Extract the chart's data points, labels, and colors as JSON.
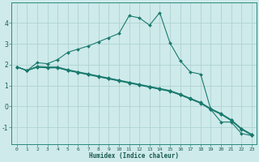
{
  "xlabel": "Humidex (Indice chaleur)",
  "background_color": "#ceeaea",
  "grid_color": "#aacece",
  "line_color": "#1a7a6e",
  "x_values": [
    0,
    1,
    2,
    3,
    4,
    5,
    6,
    7,
    8,
    9,
    10,
    11,
    12,
    13,
    14,
    15,
    16,
    17,
    18,
    19,
    20,
    21,
    22,
    23
  ],
  "series1": [
    1.9,
    1.72,
    2.1,
    2.05,
    2.25,
    2.6,
    2.75,
    2.9,
    3.1,
    3.3,
    3.5,
    4.35,
    4.25,
    3.9,
    4.5,
    3.05,
    2.2,
    1.65,
    1.55,
    -0.15,
    -0.75,
    -0.75,
    -1.3,
    -1.4
  ],
  "series2": [
    1.9,
    1.72,
    1.88,
    1.85,
    1.85,
    1.72,
    1.62,
    1.52,
    1.42,
    1.32,
    1.22,
    1.12,
    1.02,
    0.92,
    0.82,
    0.72,
    0.55,
    0.35,
    0.15,
    -0.15,
    -0.38,
    -0.68,
    -1.1,
    -1.38
  ],
  "series3": [
    1.9,
    1.72,
    1.9,
    1.87,
    1.87,
    1.74,
    1.64,
    1.54,
    1.44,
    1.34,
    1.24,
    1.14,
    1.04,
    0.94,
    0.84,
    0.74,
    0.57,
    0.37,
    0.17,
    -0.13,
    -0.36,
    -0.66,
    -1.08,
    -1.36
  ],
  "series4": [
    1.9,
    1.72,
    1.92,
    1.89,
    1.89,
    1.76,
    1.66,
    1.56,
    1.46,
    1.36,
    1.26,
    1.16,
    1.06,
    0.96,
    0.86,
    0.76,
    0.59,
    0.39,
    0.19,
    -0.11,
    -0.34,
    -0.64,
    -1.06,
    -1.34
  ],
  "ylim": [
    -1.8,
    5.0
  ],
  "xlim": [
    -0.5,
    23.5
  ],
  "yticks": [
    -1,
    0,
    1,
    2,
    3,
    4
  ],
  "xticks": [
    0,
    1,
    2,
    3,
    4,
    5,
    6,
    7,
    8,
    9,
    10,
    11,
    12,
    13,
    14,
    15,
    16,
    17,
    18,
    19,
    20,
    21,
    22,
    23
  ],
  "figsize": [
    3.2,
    2.0
  ],
  "dpi": 100
}
